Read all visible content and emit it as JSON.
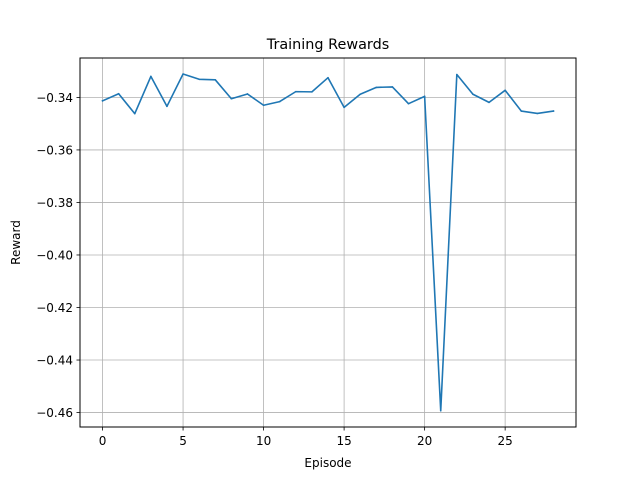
{
  "chart_data": {
    "type": "line",
    "title": "Training Rewards",
    "xlabel": "Episode",
    "ylabel": "Reward",
    "xlim": [
      -1.4,
      29.4
    ],
    "ylim": [
      -0.4655,
      -0.325
    ],
    "xticks": [
      0,
      5,
      10,
      15,
      20,
      25
    ],
    "yticks": [
      -0.46,
      -0.44,
      -0.42,
      -0.4,
      -0.38,
      -0.36,
      -0.34
    ],
    "ytick_labels": [
      "−0.46",
      "−0.44",
      "−0.42",
      "−0.40",
      "−0.38",
      "−0.36",
      "−0.34"
    ],
    "grid": true,
    "line_color": "#1f77b4",
    "x": [
      0,
      1,
      2,
      3,
      4,
      5,
      6,
      7,
      8,
      9,
      10,
      11,
      12,
      13,
      14,
      15,
      16,
      17,
      18,
      19,
      20,
      21,
      22,
      23,
      24,
      25,
      26,
      27,
      28
    ],
    "series": [
      {
        "values": [
          -0.3413,
          -0.3386,
          -0.3462,
          -0.332,
          -0.3434,
          -0.3311,
          -0.3331,
          -0.3333,
          -0.3405,
          -0.3387,
          -0.343,
          -0.3416,
          -0.3378,
          -0.3379,
          -0.3325,
          -0.3438,
          -0.3388,
          -0.3362,
          -0.336,
          -0.3424,
          -0.3396,
          -0.4593,
          -0.3313,
          -0.3388,
          -0.3419,
          -0.3373,
          -0.3452,
          -0.3461,
          -0.3452
        ]
      }
    ]
  }
}
